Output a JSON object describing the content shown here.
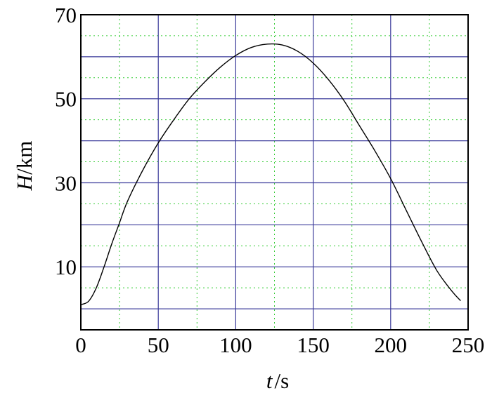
{
  "chart_data": {
    "type": "line",
    "title": "",
    "xlabel": {
      "symbol": "t",
      "unit": "/s"
    },
    "ylabel": {
      "symbol": "H",
      "unit": "/km"
    },
    "xlim": [
      0,
      250
    ],
    "ylim": [
      -5,
      70
    ],
    "x_ticks": [
      "0",
      "50",
      "100",
      "150",
      "200",
      "250"
    ],
    "y_ticks": [
      "10",
      "30",
      "50",
      "70"
    ],
    "grid": {
      "major": "on",
      "minor": "on",
      "major_color": "#3a3a9a",
      "minor_color": "#33cc33"
    },
    "legend": "none",
    "series": [
      {
        "color": "#000000",
        "points": [
          [
            0,
            1
          ],
          [
            5,
            1.8
          ],
          [
            10,
            5
          ],
          [
            15,
            10
          ],
          [
            20,
            15.5
          ],
          [
            25,
            20.5
          ],
          [
            30,
            25.5
          ],
          [
            40,
            33
          ],
          [
            50,
            39.5
          ],
          [
            60,
            45
          ],
          [
            70,
            50
          ],
          [
            80,
            54
          ],
          [
            90,
            57.5
          ],
          [
            100,
            60.3
          ],
          [
            110,
            62.2
          ],
          [
            120,
            63
          ],
          [
            130,
            62.8
          ],
          [
            140,
            61.3
          ],
          [
            150,
            58.5
          ],
          [
            160,
            54.5
          ],
          [
            170,
            49.5
          ],
          [
            180,
            43.5
          ],
          [
            190,
            37.5
          ],
          [
            200,
            31
          ],
          [
            210,
            23.5
          ],
          [
            220,
            16
          ],
          [
            230,
            9
          ],
          [
            240,
            4
          ],
          [
            245,
            2
          ]
        ]
      }
    ]
  }
}
